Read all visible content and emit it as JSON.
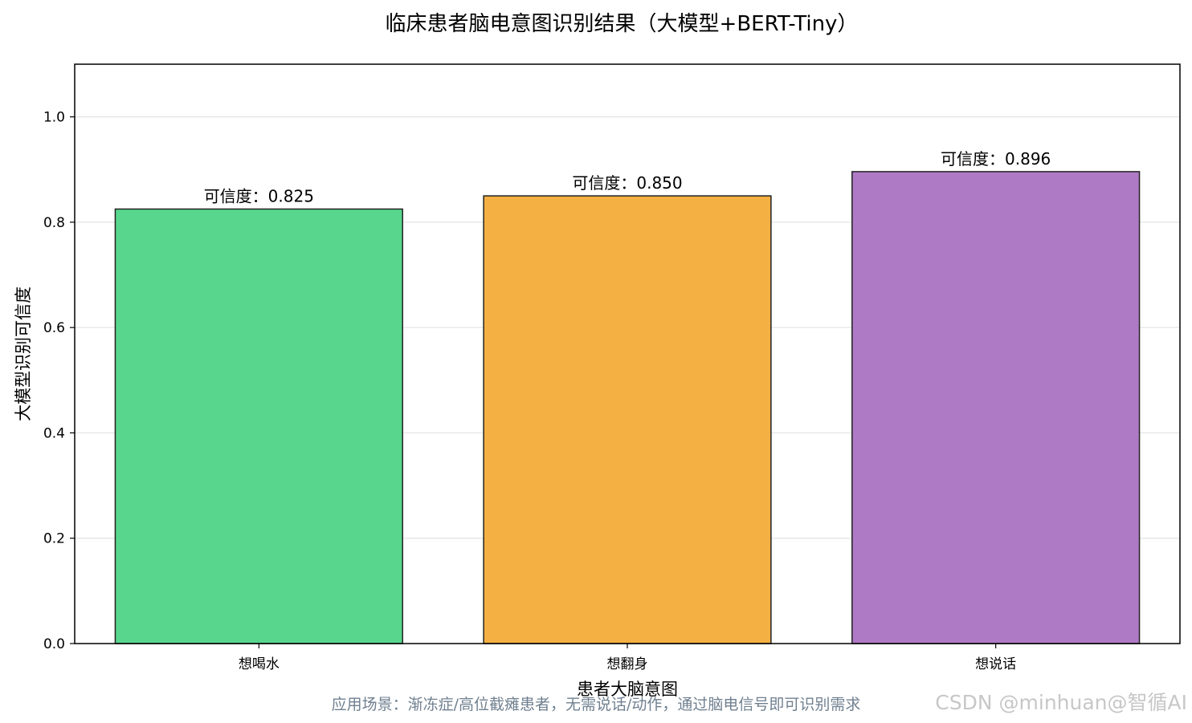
{
  "chart_data": {
    "type": "bar",
    "title": "临床患者脑电意图识别结果（大模型+BERT-Tiny）",
    "xlabel": "患者大脑意图",
    "ylabel": "大模型识别可信度",
    "categories": [
      "想喝水",
      "想翻身",
      "想说话"
    ],
    "values": [
      0.825,
      0.85,
      0.896
    ],
    "data_labels": [
      "可信度：0.825",
      "可信度：0.850",
      "可信度：0.896"
    ],
    "colors": [
      "#58d68d",
      "#f4b042",
      "#af7ac5"
    ],
    "ylim": [
      0,
      1.1
    ],
    "yticks": [
      "0.0",
      "0.2",
      "0.4",
      "0.6",
      "0.8",
      "1.0"
    ],
    "grid": "y",
    "legend": "none"
  },
  "caption": "应用场景：渐冻症/高位截瘫患者，无需说话/动作，通过脑电信号即可识别需求",
  "watermark": "CSDN @minhuan@智循AI"
}
